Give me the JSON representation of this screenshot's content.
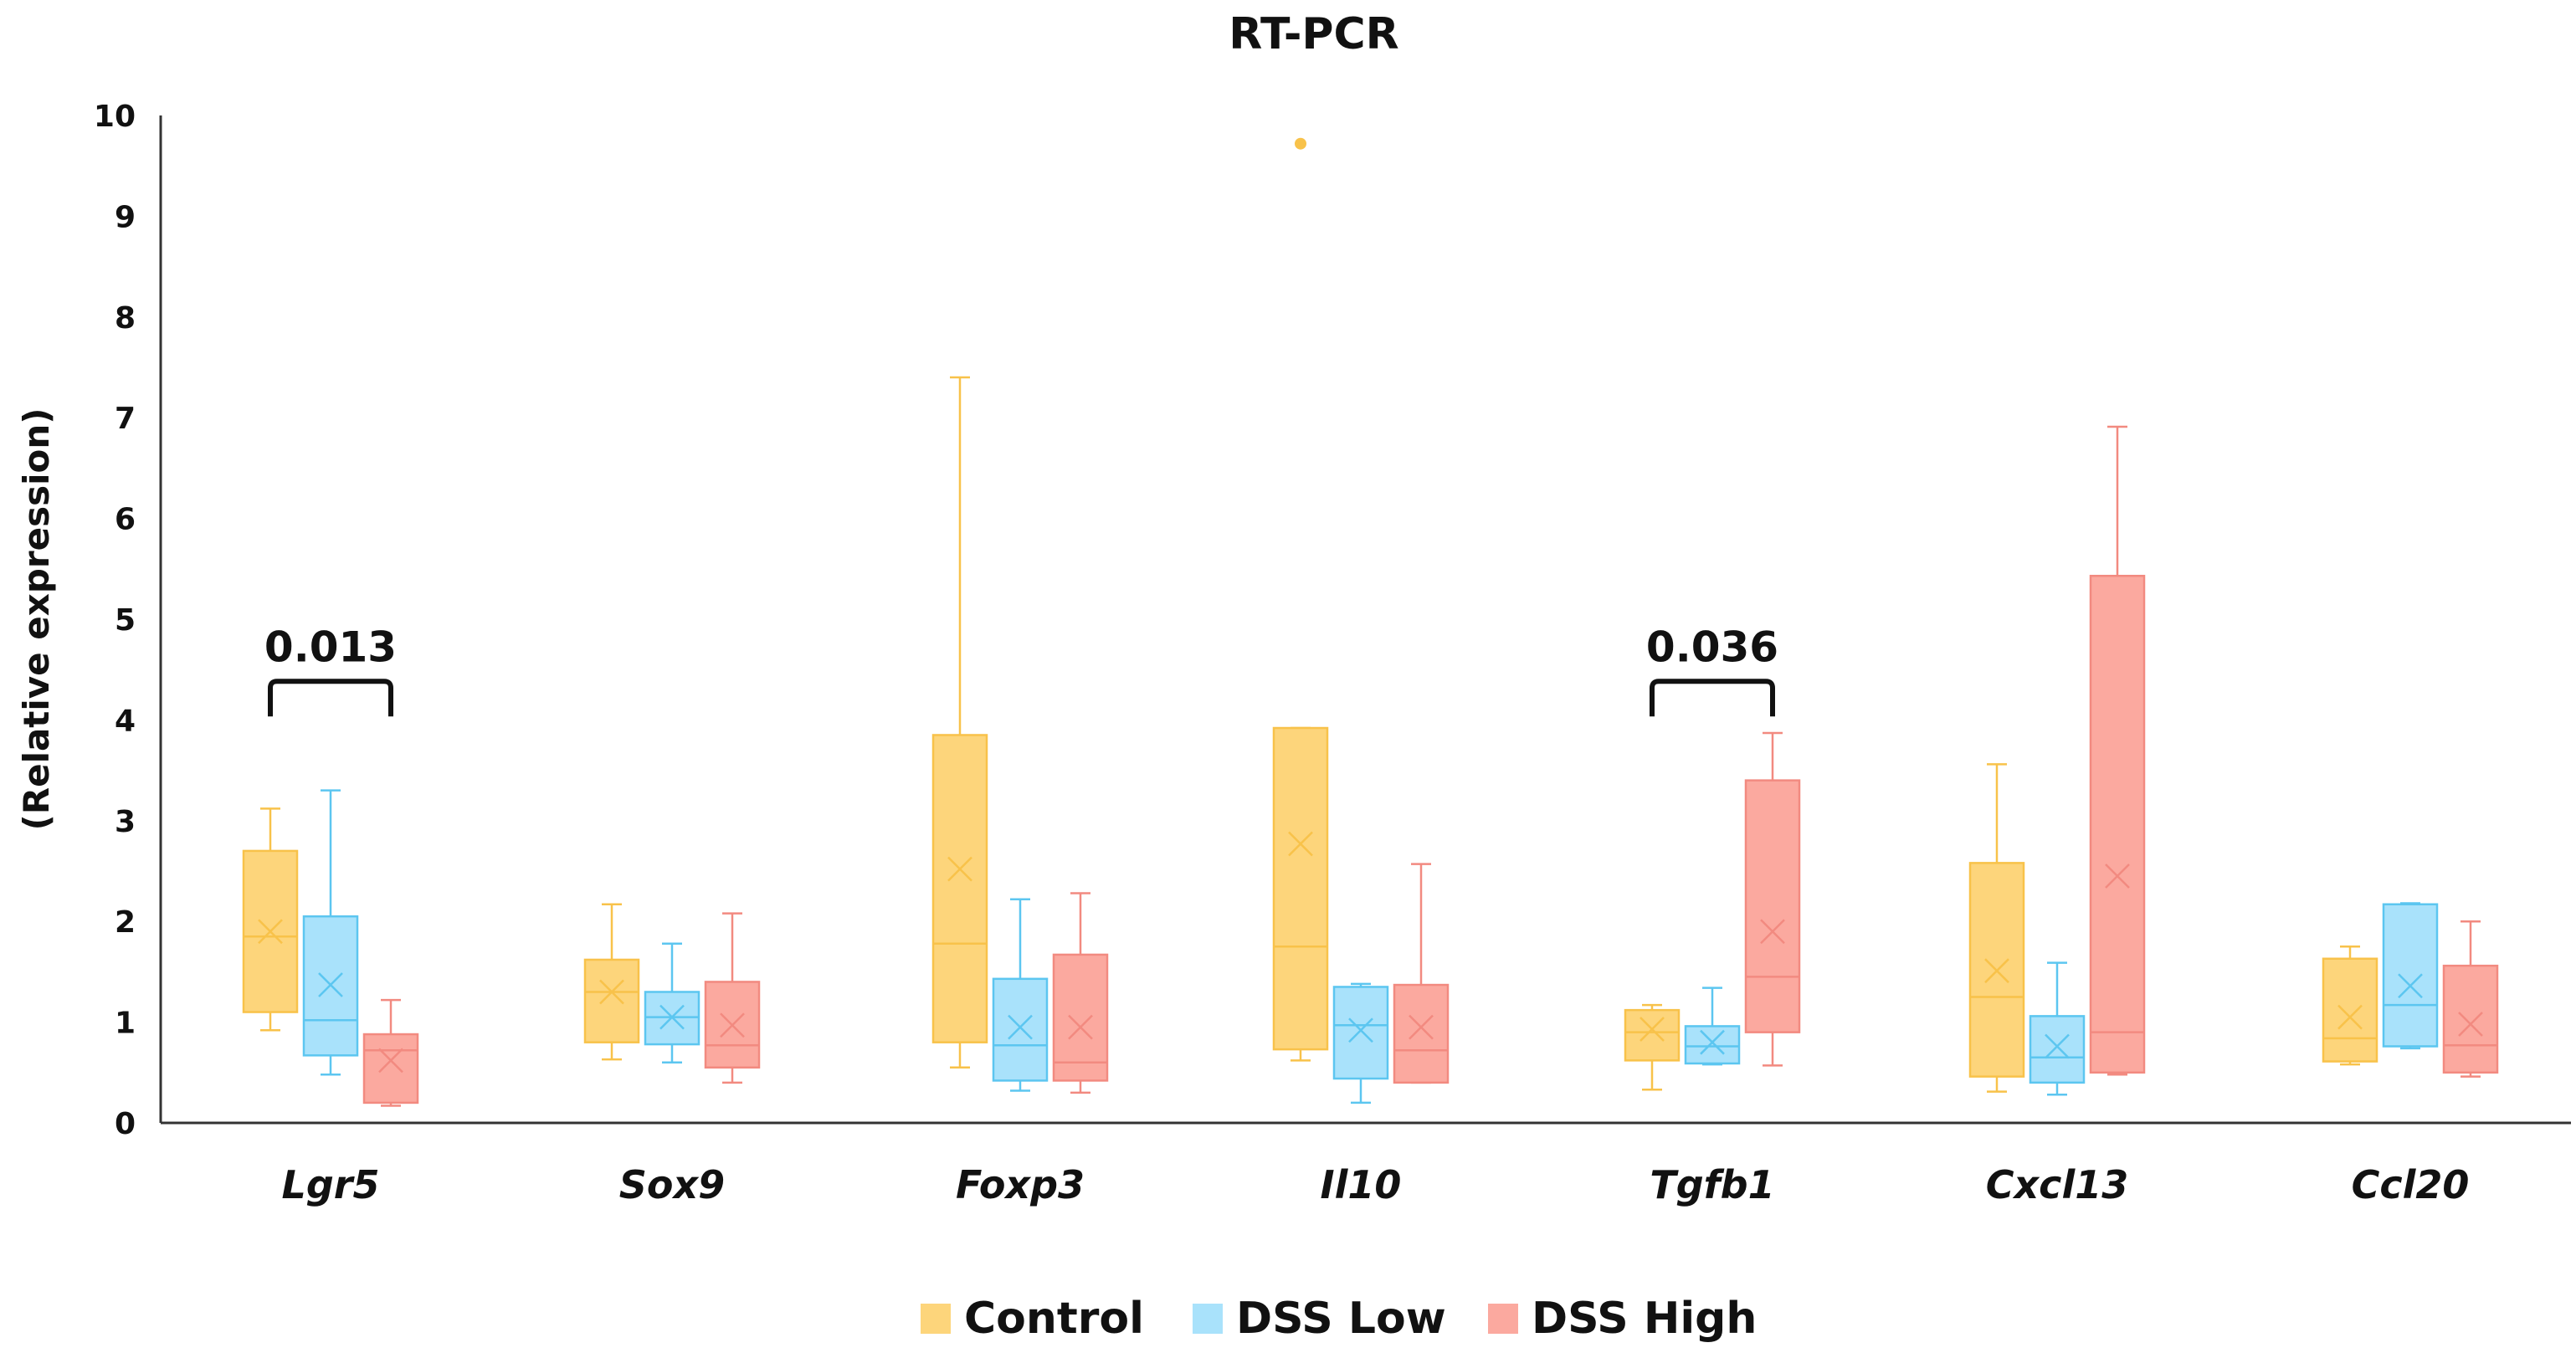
{
  "chart_data": {
    "type": "box",
    "title": "RT-PCR",
    "ylabel": "(Relative expression)",
    "xlabel": "",
    "ylim": [
      0,
      10
    ],
    "yticks": [
      "0",
      "1",
      "2",
      "3",
      "4",
      "5",
      "6",
      "7",
      "8",
      "9",
      "10"
    ],
    "grid": false,
    "legend_placement": "bottom",
    "categories": [
      "Lgr5",
      "Sox9",
      "Foxp3",
      "Il10",
      "Tgfb1",
      "Cxcl13",
      "Ccl20"
    ],
    "series": [
      {
        "name": "Control",
        "fill": "#FDD57B",
        "stroke": "#F8C24A",
        "boxes": [
          {
            "min": 0.92,
            "q1": 1.1,
            "median": 1.85,
            "q3": 2.7,
            "max": 3.12,
            "mean": 1.9
          },
          {
            "min": 0.63,
            "q1": 0.8,
            "median": 1.3,
            "q3": 1.62,
            "max": 2.17,
            "mean": 1.3
          },
          {
            "min": 0.55,
            "q1": 0.8,
            "median": 1.78,
            "q3": 3.85,
            "max": 7.4,
            "mean": 2.52
          },
          {
            "min": 0.62,
            "q1": 0.73,
            "median": 1.75,
            "q3": 3.92,
            "max": 3.92,
            "mean": 2.77,
            "outliers": [
              9.72
            ]
          },
          {
            "min": 0.33,
            "q1": 0.62,
            "median": 0.9,
            "q3": 1.12,
            "max": 1.17,
            "mean": 0.93
          },
          {
            "min": 0.31,
            "q1": 0.46,
            "median": 1.25,
            "q3": 2.58,
            "max": 3.56,
            "mean": 1.51
          },
          {
            "min": 0.58,
            "q1": 0.61,
            "median": 0.84,
            "q3": 1.63,
            "max": 1.75,
            "mean": 1.05
          }
        ]
      },
      {
        "name": "DSS Low",
        "fill": "#A9E2FB",
        "stroke": "#5CC6F0",
        "boxes": [
          {
            "min": 0.48,
            "q1": 0.67,
            "median": 1.02,
            "q3": 2.05,
            "max": 3.3,
            "mean": 1.37
          },
          {
            "min": 0.6,
            "q1": 0.78,
            "median": 1.05,
            "q3": 1.3,
            "max": 1.78,
            "mean": 1.05
          },
          {
            "min": 0.32,
            "q1": 0.42,
            "median": 0.77,
            "q3": 1.43,
            "max": 2.22,
            "mean": 0.95
          },
          {
            "min": 0.2,
            "q1": 0.44,
            "median": 0.97,
            "q3": 1.35,
            "max": 1.38,
            "mean": 0.92
          },
          {
            "min": 0.58,
            "q1": 0.59,
            "median": 0.76,
            "q3": 0.96,
            "max": 1.34,
            "mean": 0.8
          },
          {
            "min": 0.28,
            "q1": 0.4,
            "median": 0.65,
            "q3": 1.06,
            "max": 1.59,
            "mean": 0.76
          },
          {
            "min": 0.74,
            "q1": 0.76,
            "median": 1.17,
            "q3": 2.17,
            "max": 2.18,
            "mean": 1.36
          }
        ]
      },
      {
        "name": "DSS High",
        "fill": "#FBA99F",
        "stroke": "#F28A80",
        "boxes": [
          {
            "min": 0.17,
            "q1": 0.2,
            "median": 0.72,
            "q3": 0.88,
            "max": 1.22,
            "mean": 0.62
          },
          {
            "min": 0.4,
            "q1": 0.55,
            "median": 0.77,
            "q3": 1.4,
            "max": 2.08,
            "mean": 0.97
          },
          {
            "min": 0.3,
            "q1": 0.42,
            "median": 0.6,
            "q3": 1.67,
            "max": 2.28,
            "mean": 0.95
          },
          {
            "min": 0.4,
            "q1": 0.4,
            "median": 0.72,
            "q3": 1.37,
            "max": 2.57,
            "mean": 0.95
          },
          {
            "min": 0.57,
            "q1": 0.9,
            "median": 1.45,
            "q3": 3.4,
            "max": 3.87,
            "mean": 1.9
          },
          {
            "min": 0.48,
            "q1": 0.5,
            "median": 0.9,
            "q3": 5.43,
            "max": 6.91,
            "mean": 2.45
          },
          {
            "min": 0.46,
            "q1": 0.5,
            "median": 0.77,
            "q3": 1.56,
            "max": 2.0,
            "mean": 0.98
          }
        ]
      }
    ],
    "annotations": [
      {
        "category": "Lgr5",
        "from": "Control",
        "to": "DSS High",
        "text": "0.013",
        "bracket_y": 4.3
      },
      {
        "category": "Tgfb1",
        "from": "Control",
        "to": "DSS High",
        "text": "0.036",
        "bracket_y": 4.3
      }
    ]
  }
}
